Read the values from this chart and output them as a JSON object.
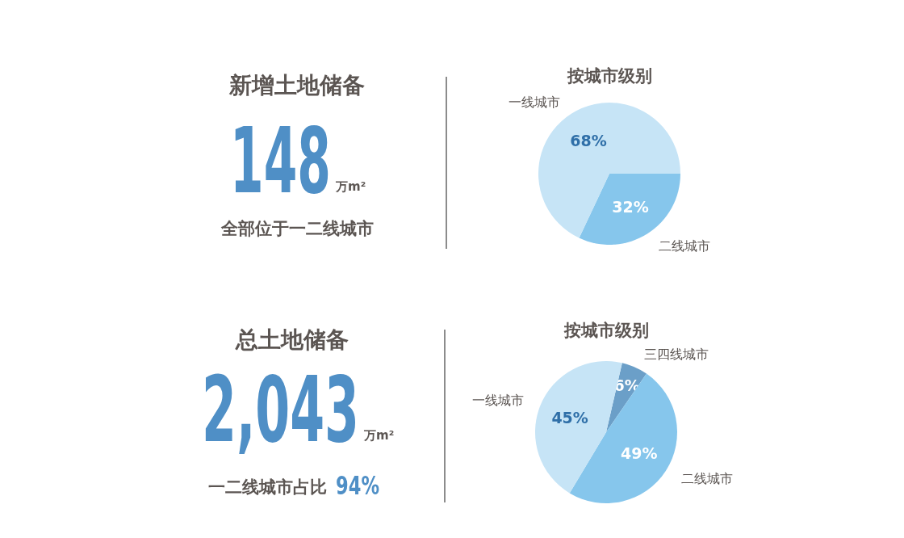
{
  "chart_data": [
    {
      "type": "other",
      "title": "新增土地储备",
      "annotations": [
        "148",
        "万m²",
        "全部位于一二线城市"
      ]
    },
    {
      "type": "pie",
      "title": "按城市级别",
      "categories": [
        "二线城市",
        "一线城市"
      ],
      "values": [
        32,
        68
      ],
      "value_labels": [
        "32%",
        "68%"
      ],
      "colors": [
        "#86c6ec",
        "#c6e4f6"
      ]
    },
    {
      "type": "other",
      "title": "总土地储备",
      "annotations": [
        "2,043",
        "万m²",
        "一二线城市占比",
        "94%"
      ]
    },
    {
      "type": "pie",
      "title": "按城市级别",
      "categories": [
        "三四线城市",
        "二线城市",
        "一线城市"
      ],
      "values": [
        6,
        49,
        45
      ],
      "value_labels": [
        "6%",
        "49%",
        "45%"
      ],
      "colors": [
        "#6b9fc8",
        "#86c6ec",
        "#c6e4f6"
      ]
    }
  ]
}
